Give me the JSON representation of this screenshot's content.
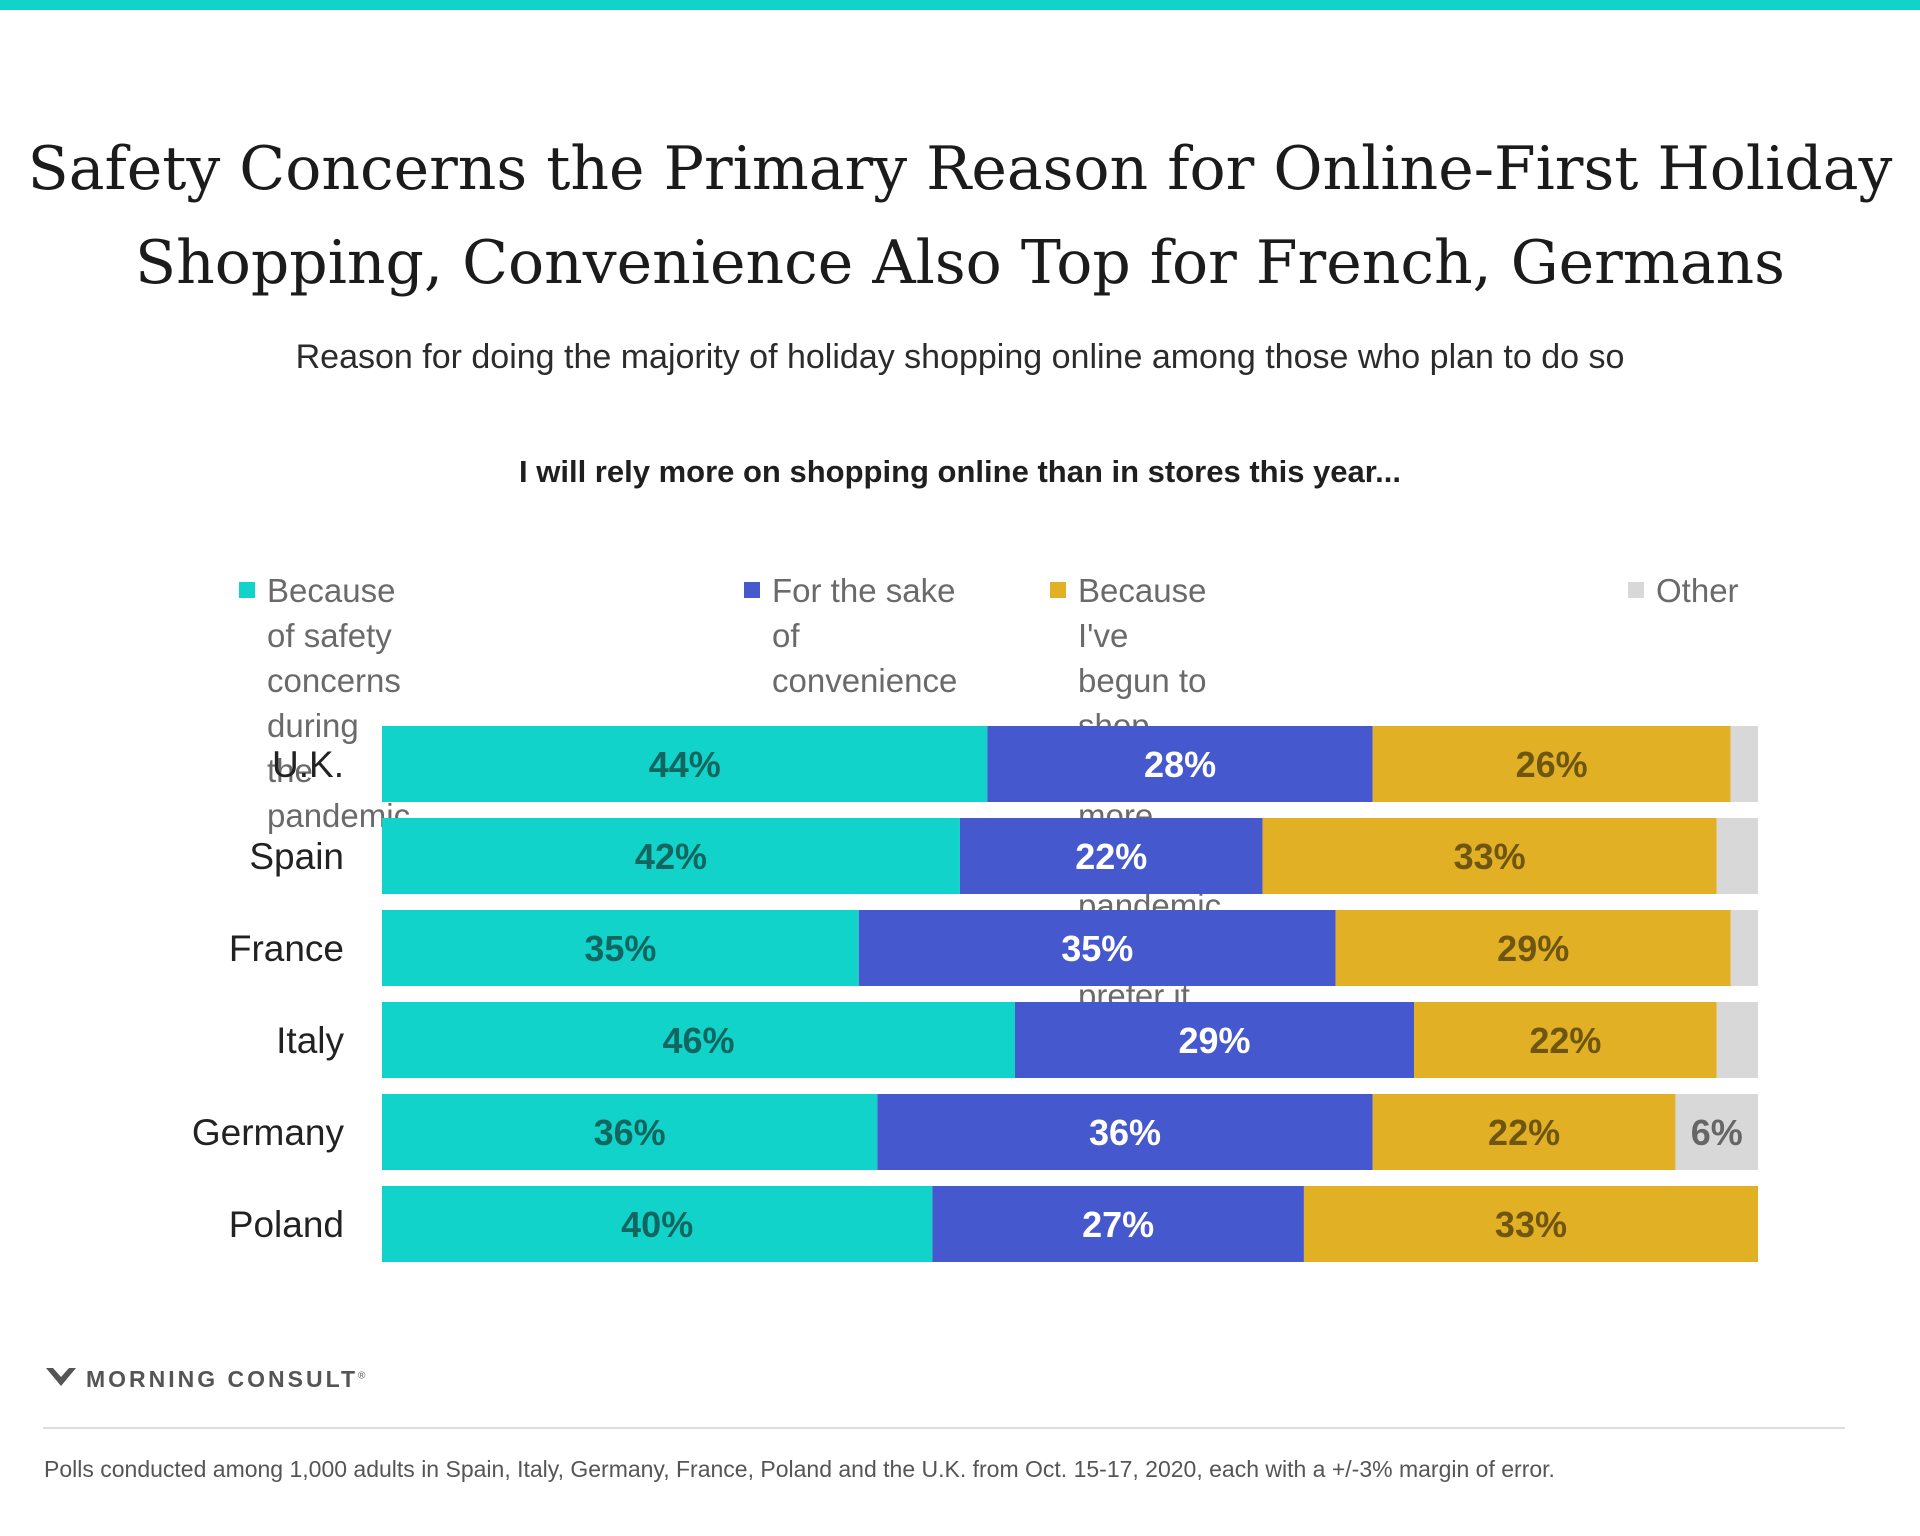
{
  "header": {
    "title_line1": "Safety Concerns the Primary Reason for Online-First Holiday",
    "title_line2": "Shopping, Convenience Also Top for French, Germans",
    "subtitle": "Reason for doing the majority of holiday shopping online among those who plan to do so",
    "question": "I will rely more on shopping online than in stores this year..."
  },
  "legend": [
    {
      "label": "Because of safety concerns\nduring the pandemic",
      "color": "#12d3c9"
    },
    {
      "label": "For the sake\nof convenience",
      "color": "#4658ce"
    },
    {
      "label": "Because I've begun to shop\nonline more since the pandemic\nand now prefer it",
      "color": "#e1b025"
    },
    {
      "label": "Other",
      "color": "#d8d8d8"
    }
  ],
  "chart_data": {
    "type": "bar",
    "orientation": "horizontal",
    "stacked": true,
    "xlim": [
      0,
      100
    ],
    "categories": [
      "U.K.",
      "Spain",
      "France",
      "Italy",
      "Germany",
      "Poland"
    ],
    "series": [
      {
        "name": "Because of safety concerns during the pandemic",
        "color": "#12d3c9",
        "label_color": "#12665f",
        "values": [
          44,
          42,
          35,
          46,
          36,
          40
        ],
        "labels": [
          "44%",
          "42%",
          "35%",
          "46%",
          "36%",
          "40%"
        ]
      },
      {
        "name": "For the sake of convenience",
        "color": "#4658ce",
        "label_color": "#ffffff",
        "values": [
          28,
          22,
          35,
          29,
          36,
          27
        ],
        "labels": [
          "28%",
          "22%",
          "35%",
          "29%",
          "36%",
          "27%"
        ]
      },
      {
        "name": "Because I've begun to shop online more since the pandemic and now prefer it",
        "color": "#e1b025",
        "label_color": "#6e5510",
        "values": [
          26,
          33,
          29,
          22,
          22,
          33
        ],
        "labels": [
          "26%",
          "33%",
          "29%",
          "22%",
          "22%",
          "33%"
        ]
      },
      {
        "name": "Other",
        "color": "#d8d8d8",
        "label_color": "#666666",
        "values": [
          2,
          3,
          2,
          3,
          6,
          0
        ],
        "labels": [
          "",
          "",
          "",
          "",
          "6%",
          ""
        ]
      }
    ]
  },
  "branding": {
    "logo_text": "MORNING CONSULT",
    "registered_mark": "®"
  },
  "footnote": "Polls conducted among 1,000 adults in Spain, Italy, Germany, France, Poland and the U.K. from Oct. 15-17, 2020, each with a +/-3% margin of error."
}
